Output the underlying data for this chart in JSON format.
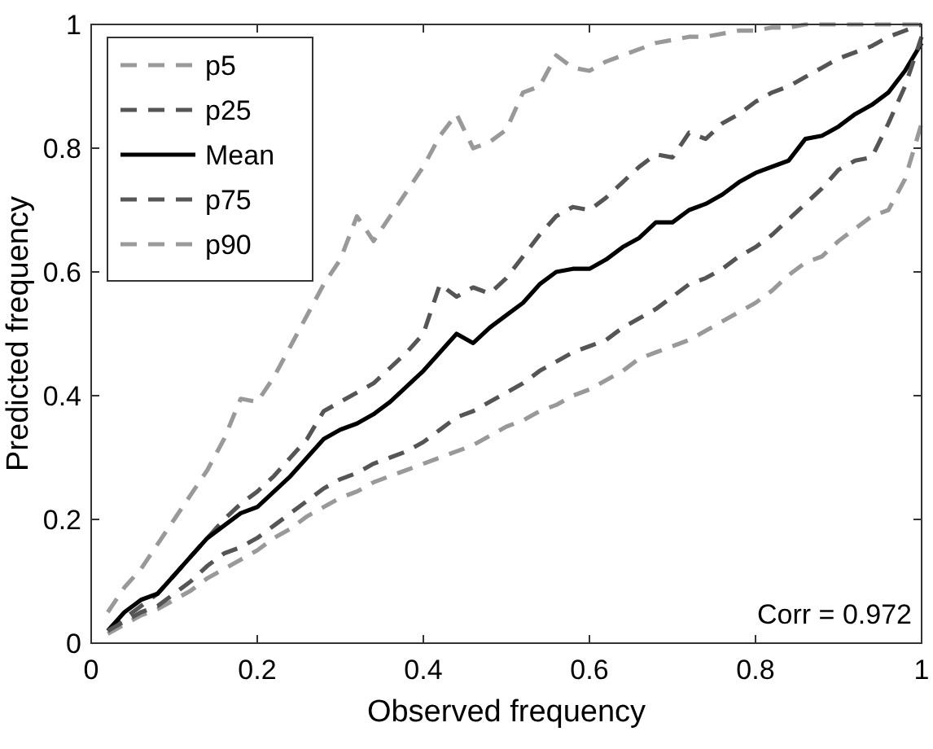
{
  "chart_data": {
    "type": "line",
    "xlabel": "Observed frequency",
    "ylabel": "Predicted frequency",
    "x": [
      0.02,
      0.04,
      0.06,
      0.08,
      0.1,
      0.12,
      0.14,
      0.16,
      0.18,
      0.2,
      0.22,
      0.24,
      0.26,
      0.28,
      0.3,
      0.32,
      0.34,
      0.36,
      0.38,
      0.4,
      0.42,
      0.44,
      0.46,
      0.48,
      0.5,
      0.52,
      0.54,
      0.56,
      0.58,
      0.6,
      0.62,
      0.64,
      0.66,
      0.68,
      0.7,
      0.72,
      0.74,
      0.76,
      0.78,
      0.8,
      0.82,
      0.84,
      0.86,
      0.88,
      0.9,
      0.92,
      0.94,
      0.96,
      0.98,
      1.0
    ],
    "series": [
      {
        "name": "p5",
        "color": "#999999",
        "line_style": "dashed",
        "values": [
          0.015,
          0.03,
          0.045,
          0.055,
          0.07,
          0.085,
          0.105,
          0.12,
          0.135,
          0.15,
          0.17,
          0.185,
          0.205,
          0.22,
          0.235,
          0.245,
          0.26,
          0.27,
          0.28,
          0.29,
          0.3,
          0.31,
          0.32,
          0.335,
          0.35,
          0.36,
          0.375,
          0.385,
          0.4,
          0.41,
          0.425,
          0.44,
          0.46,
          0.47,
          0.48,
          0.49,
          0.505,
          0.52,
          0.535,
          0.55,
          0.57,
          0.595,
          0.615,
          0.625,
          0.65,
          0.67,
          0.69,
          0.7,
          0.75,
          0.84
        ]
      },
      {
        "name": "p25",
        "color": "#555555",
        "line_style": "dashed",
        "values": [
          0.02,
          0.04,
          0.06,
          0.08,
          0.11,
          0.14,
          0.17,
          0.2,
          0.225,
          0.245,
          0.27,
          0.3,
          0.33,
          0.375,
          0.39,
          0.405,
          0.42,
          0.445,
          0.47,
          0.5,
          0.58,
          0.56,
          0.575,
          0.565,
          0.59,
          0.625,
          0.66,
          0.69,
          0.705,
          0.7,
          0.72,
          0.745,
          0.77,
          0.79,
          0.785,
          0.825,
          0.815,
          0.84,
          0.855,
          0.875,
          0.89,
          0.9,
          0.915,
          0.93,
          0.945,
          0.955,
          0.965,
          0.98,
          0.99,
          1.0
        ]
      },
      {
        "name": "Mean",
        "color": "#000000",
        "line_style": "solid",
        "values": [
          0.02,
          0.05,
          0.07,
          0.08,
          0.11,
          0.14,
          0.17,
          0.19,
          0.21,
          0.22,
          0.245,
          0.27,
          0.3,
          0.33,
          0.345,
          0.355,
          0.37,
          0.39,
          0.415,
          0.44,
          0.47,
          0.5,
          0.485,
          0.51,
          0.53,
          0.55,
          0.58,
          0.6,
          0.605,
          0.605,
          0.62,
          0.64,
          0.655,
          0.68,
          0.68,
          0.7,
          0.71,
          0.725,
          0.745,
          0.76,
          0.77,
          0.78,
          0.815,
          0.82,
          0.835,
          0.855,
          0.87,
          0.89,
          0.925,
          0.97
        ]
      },
      {
        "name": "p75",
        "color": "#555555",
        "line_style": "dashed",
        "values": [
          0.02,
          0.035,
          0.05,
          0.06,
          0.08,
          0.1,
          0.125,
          0.145,
          0.155,
          0.17,
          0.19,
          0.21,
          0.23,
          0.25,
          0.265,
          0.275,
          0.29,
          0.3,
          0.31,
          0.325,
          0.345,
          0.365,
          0.375,
          0.39,
          0.405,
          0.42,
          0.44,
          0.455,
          0.47,
          0.48,
          0.49,
          0.51,
          0.525,
          0.54,
          0.56,
          0.58,
          0.59,
          0.605,
          0.625,
          0.64,
          0.66,
          0.685,
          0.71,
          0.735,
          0.765,
          0.78,
          0.785,
          0.84,
          0.9,
          0.98
        ]
      },
      {
        "name": "p90",
        "color": "#999999",
        "line_style": "dashed",
        "values": [
          0.05,
          0.09,
          0.12,
          0.16,
          0.2,
          0.24,
          0.28,
          0.33,
          0.395,
          0.39,
          0.43,
          0.48,
          0.53,
          0.58,
          0.62,
          0.69,
          0.65,
          0.69,
          0.73,
          0.77,
          0.82,
          0.855,
          0.8,
          0.81,
          0.83,
          0.89,
          0.9,
          0.95,
          0.93,
          0.925,
          0.94,
          0.95,
          0.96,
          0.97,
          0.975,
          0.98,
          0.98,
          0.985,
          0.99,
          0.99,
          0.995,
          0.995,
          1.0,
          1.0,
          1.0,
          1.0,
          1.0,
          1.0,
          1.0,
          1.0
        ]
      }
    ],
    "xlim": [
      0,
      1
    ],
    "xticks": [
      0,
      0.2,
      0.4,
      0.6,
      0.8,
      1
    ],
    "ylim": [
      0,
      1
    ],
    "yticks": [
      0,
      0.2,
      0.4,
      0.6,
      0.8,
      1
    ],
    "grid": false,
    "legend": "top left",
    "annotations": [
      "Corr = 0.972"
    ]
  }
}
